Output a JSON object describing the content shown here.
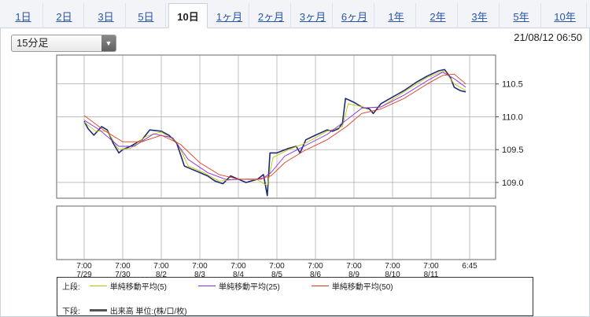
{
  "tabs": [
    {
      "label": "1日",
      "active": false
    },
    {
      "label": "2日",
      "active": false
    },
    {
      "label": "3日",
      "active": false
    },
    {
      "label": "5日",
      "active": false
    },
    {
      "label": "10日",
      "active": true
    },
    {
      "label": "1ヶ月",
      "active": false
    },
    {
      "label": "2ヶ月",
      "active": false
    },
    {
      "label": "3ヶ月",
      "active": false
    },
    {
      "label": "6ヶ月",
      "active": false
    },
    {
      "label": "1年",
      "active": false
    },
    {
      "label": "2年",
      "active": false
    },
    {
      "label": "3年",
      "active": false
    },
    {
      "label": "5年",
      "active": false
    },
    {
      "label": "10年",
      "active": false
    }
  ],
  "interval_select": {
    "value": "15分足"
  },
  "timestamp": "21/08/12 06:50",
  "legend": {
    "upper_label": "上段:",
    "lower_label": "下段:",
    "ma5": "単純移動平均(5)",
    "ma25": "単純移動平均(25)",
    "ma50": "単純移動平均(50)",
    "volume": "出来高 単位:(株/口/枚)"
  },
  "colors": {
    "price": "#1e2a78",
    "ma5": "#b8c800",
    "ma25": "#8a2be2",
    "ma50": "#e03a1e",
    "grid": "#999999"
  },
  "chart_data": {
    "type": "line",
    "y_ticks": [
      "110.5",
      "110.0",
      "109.5",
      "109.0"
    ],
    "ylim": [
      108.76,
      110.94
    ],
    "x_labels": [
      {
        "time": "7:00",
        "date": "7/29"
      },
      {
        "time": "7:00",
        "date": "7/30"
      },
      {
        "time": "7:00",
        "date": "8/2"
      },
      {
        "time": "7:00",
        "date": "8/3"
      },
      {
        "time": "7:00",
        "date": "8/4"
      },
      {
        "time": "7:00",
        "date": "8/5"
      },
      {
        "time": "7:00",
        "date": "8/6"
      },
      {
        "time": "7:00",
        "date": "8/9"
      },
      {
        "time": "7:00",
        "date": "8/10"
      },
      {
        "time": "7:00",
        "date": "8/11"
      },
      {
        "time": "6:45",
        "date": ""
      }
    ],
    "series": [
      {
        "key": "price",
        "points": [
          [
            0,
            109.93
          ],
          [
            0.1,
            109.82
          ],
          [
            0.25,
            109.72
          ],
          [
            0.45,
            109.85
          ],
          [
            0.6,
            109.8
          ],
          [
            0.75,
            109.6
          ],
          [
            0.9,
            109.45
          ],
          [
            1.0,
            109.5
          ],
          [
            1.2,
            109.55
          ],
          [
            1.5,
            109.65
          ],
          [
            1.7,
            109.8
          ],
          [
            2.0,
            109.78
          ],
          [
            2.2,
            109.72
          ],
          [
            2.4,
            109.6
          ],
          [
            2.6,
            109.25
          ],
          [
            2.8,
            109.2
          ],
          [
            3.0,
            109.15
          ],
          [
            3.2,
            109.1
          ],
          [
            3.4,
            109.02
          ],
          [
            3.6,
            108.98
          ],
          [
            3.8,
            109.1
          ],
          [
            4.0,
            109.05
          ],
          [
            4.2,
            109.0
          ],
          [
            4.5,
            109.05
          ],
          [
            4.65,
            109.12
          ],
          [
            4.75,
            108.8
          ],
          [
            4.82,
            109.45
          ],
          [
            5.0,
            109.45
          ],
          [
            5.3,
            109.52
          ],
          [
            5.5,
            109.55
          ],
          [
            5.6,
            109.45
          ],
          [
            5.75,
            109.65
          ],
          [
            6.0,
            109.72
          ],
          [
            6.3,
            109.8
          ],
          [
            6.45,
            109.78
          ],
          [
            6.6,
            109.82
          ],
          [
            6.7,
            109.9
          ],
          [
            6.78,
            110.28
          ],
          [
            7.0,
            110.22
          ],
          [
            7.2,
            110.15
          ],
          [
            7.4,
            110.12
          ],
          [
            7.5,
            110.05
          ],
          [
            7.7,
            110.2
          ],
          [
            8.0,
            110.3
          ],
          [
            8.3,
            110.4
          ],
          [
            8.6,
            110.52
          ],
          [
            8.9,
            110.62
          ],
          [
            9.2,
            110.7
          ],
          [
            9.35,
            110.72
          ],
          [
            9.5,
            110.6
          ],
          [
            9.6,
            110.45
          ],
          [
            9.75,
            110.4
          ],
          [
            9.9,
            110.38
          ]
        ]
      },
      {
        "key": "ma5",
        "points": [
          [
            0,
            109.92
          ],
          [
            0.3,
            109.78
          ],
          [
            0.6,
            109.78
          ],
          [
            0.9,
            109.5
          ],
          [
            1.2,
            109.52
          ],
          [
            1.6,
            109.7
          ],
          [
            2.0,
            109.77
          ],
          [
            2.4,
            109.62
          ],
          [
            2.7,
            109.25
          ],
          [
            3.1,
            109.15
          ],
          [
            3.5,
            109.02
          ],
          [
            4.0,
            109.05
          ],
          [
            4.5,
            109.04
          ],
          [
            4.75,
            108.95
          ],
          [
            4.9,
            109.38
          ],
          [
            5.3,
            109.5
          ],
          [
            5.75,
            109.6
          ],
          [
            6.3,
            109.78
          ],
          [
            6.7,
            109.85
          ],
          [
            6.85,
            110.2
          ],
          [
            7.3,
            110.14
          ],
          [
            7.7,
            110.15
          ],
          [
            8.3,
            110.38
          ],
          [
            8.9,
            110.6
          ],
          [
            9.35,
            110.7
          ],
          [
            9.6,
            110.5
          ],
          [
            9.9,
            110.4
          ]
        ]
      },
      {
        "key": "ma25",
        "points": [
          [
            0,
            109.95
          ],
          [
            0.4,
            109.8
          ],
          [
            0.9,
            109.55
          ],
          [
            1.3,
            109.55
          ],
          [
            1.8,
            109.74
          ],
          [
            2.3,
            109.68
          ],
          [
            2.7,
            109.35
          ],
          [
            3.2,
            109.15
          ],
          [
            3.7,
            109.04
          ],
          [
            4.2,
            109.05
          ],
          [
            4.6,
            109.05
          ],
          [
            4.85,
            109.15
          ],
          [
            5.2,
            109.4
          ],
          [
            5.7,
            109.55
          ],
          [
            6.3,
            109.73
          ],
          [
            6.8,
            109.95
          ],
          [
            7.2,
            110.13
          ],
          [
            7.7,
            110.15
          ],
          [
            8.3,
            110.33
          ],
          [
            8.9,
            110.55
          ],
          [
            9.3,
            110.68
          ],
          [
            9.6,
            110.58
          ],
          [
            9.9,
            110.45
          ]
        ]
      },
      {
        "key": "ma50",
        "points": [
          [
            0,
            110.02
          ],
          [
            0.5,
            109.8
          ],
          [
            1.0,
            109.62
          ],
          [
            1.5,
            109.62
          ],
          [
            2.0,
            109.72
          ],
          [
            2.5,
            109.58
          ],
          [
            3.0,
            109.3
          ],
          [
            3.5,
            109.12
          ],
          [
            4.0,
            109.05
          ],
          [
            4.5,
            109.05
          ],
          [
            4.85,
            109.1
          ],
          [
            5.2,
            109.3
          ],
          [
            5.7,
            109.48
          ],
          [
            6.3,
            109.65
          ],
          [
            6.8,
            109.85
          ],
          [
            7.2,
            110.05
          ],
          [
            7.7,
            110.12
          ],
          [
            8.3,
            110.28
          ],
          [
            8.9,
            110.5
          ],
          [
            9.3,
            110.63
          ],
          [
            9.6,
            110.65
          ],
          [
            9.9,
            110.5
          ]
        ]
      }
    ]
  }
}
